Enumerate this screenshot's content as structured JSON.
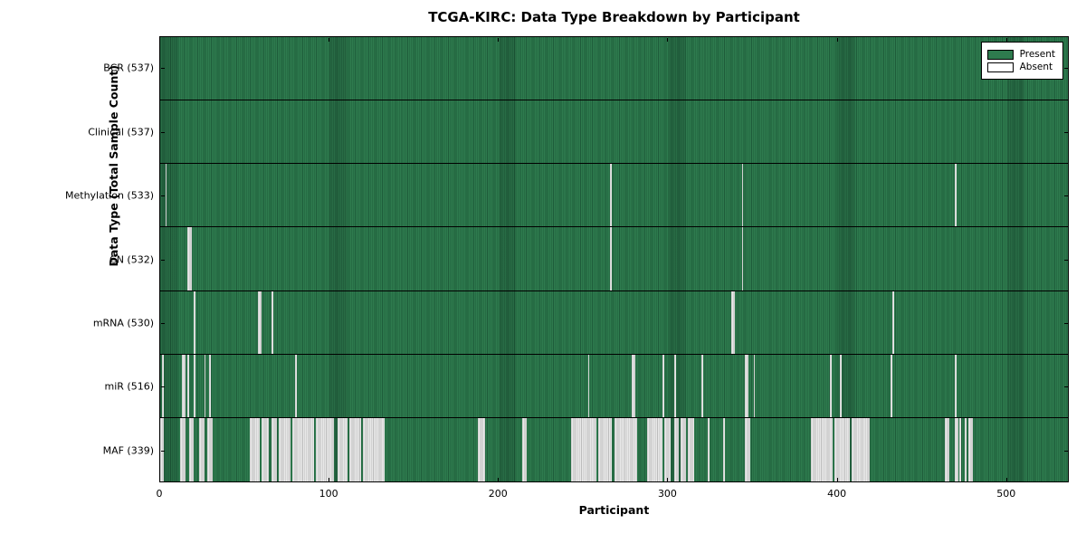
{
  "chart_data": {
    "type": "heatmap",
    "title": "TCGA-KIRC: Data Type Breakdown by Participant",
    "xlabel": "Participant",
    "ylabel": "Data Type (Total Sample Count)",
    "x_max": 537,
    "x_ticks": [
      0,
      100,
      200,
      300,
      400,
      500
    ],
    "legend": [
      {
        "label": "Present",
        "color": "#2e7b4e"
      },
      {
        "label": "Absent",
        "color": "#ffffff"
      }
    ],
    "colors": {
      "present": "#2e7b4e",
      "present_edge": "#1e5c3a",
      "present_block_line": "rgba(0,0,0,0.18)",
      "absent": "#e8e8e8",
      "absent_edge": "#bcbcbc",
      "border": "#000000"
    },
    "rows": [
      {
        "label": "BCR (537)",
        "name": "BCR",
        "total": 537,
        "absent_ranges": []
      },
      {
        "label": "Clinical (537)",
        "name": "Clinical",
        "total": 537,
        "absent_ranges": []
      },
      {
        "label": "Methylation (533)",
        "name": "Methylation",
        "total": 533,
        "absent_ranges": [
          [
            3,
            3
          ],
          [
            266,
            266
          ],
          [
            344,
            344
          ],
          [
            470,
            470
          ]
        ]
      },
      {
        "label": "CN (532)",
        "name": "CN",
        "total": 532,
        "absent_ranges": [
          [
            16,
            18
          ],
          [
            266,
            266
          ],
          [
            344,
            344
          ]
        ]
      },
      {
        "label": "mRNA (530)",
        "name": "mRNA",
        "total": 530,
        "absent_ranges": [
          [
            20,
            20
          ],
          [
            58,
            59
          ],
          [
            66,
            66
          ],
          [
            338,
            339
          ],
          [
            433,
            433
          ]
        ]
      },
      {
        "label": "miR (516)",
        "name": "miR",
        "total": 516,
        "absent_ranges": [
          [
            1,
            1
          ],
          [
            13,
            14
          ],
          [
            16,
            16
          ],
          [
            20,
            20
          ],
          [
            26,
            26
          ],
          [
            29,
            29
          ],
          [
            80,
            80
          ],
          [
            253,
            253
          ],
          [
            279,
            280
          ],
          [
            297,
            297
          ],
          [
            304,
            304
          ],
          [
            320,
            320
          ],
          [
            346,
            347
          ],
          [
            351,
            351
          ],
          [
            396,
            396
          ],
          [
            402,
            402
          ],
          [
            432,
            432
          ],
          [
            470,
            470
          ]
        ]
      },
      {
        "label": "MAF (339)",
        "name": "MAF",
        "total": 339,
        "absent_ranges": [
          [
            0,
            1
          ],
          [
            12,
            14
          ],
          [
            17,
            19
          ],
          [
            23,
            25
          ],
          [
            28,
            30
          ],
          [
            53,
            58
          ],
          [
            60,
            63
          ],
          [
            66,
            68
          ],
          [
            70,
            76
          ],
          [
            78,
            90
          ],
          [
            92,
            102
          ],
          [
            105,
            110
          ],
          [
            112,
            118
          ],
          [
            120,
            132
          ],
          [
            188,
            191
          ],
          [
            214,
            216
          ],
          [
            243,
            257
          ],
          [
            259,
            266
          ],
          [
            269,
            281
          ],
          [
            288,
            296
          ],
          [
            298,
            301
          ],
          [
            304,
            306
          ],
          [
            308,
            310
          ],
          [
            312,
            315
          ],
          [
            324,
            324
          ],
          [
            333,
            333
          ],
          [
            346,
            348
          ],
          [
            385,
            397
          ],
          [
            399,
            407
          ],
          [
            409,
            419
          ],
          [
            464,
            466
          ],
          [
            470,
            471
          ],
          [
            473,
            473
          ],
          [
            476,
            476
          ],
          [
            478,
            480
          ]
        ]
      }
    ]
  }
}
